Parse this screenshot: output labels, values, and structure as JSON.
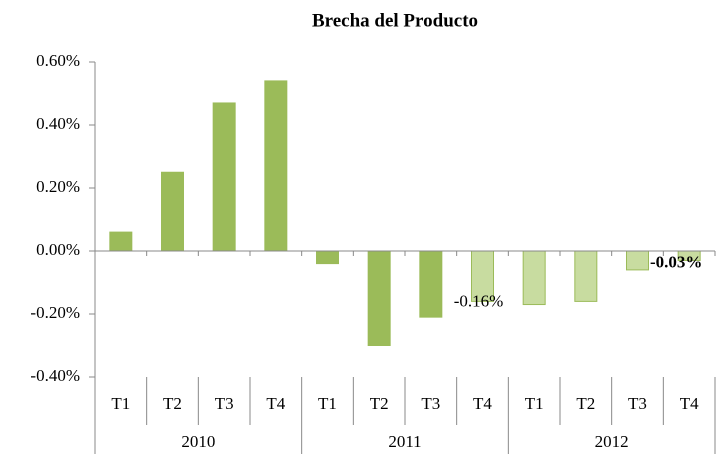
{
  "chart_data": {
    "type": "bar",
    "title": "Brecha del Producto",
    "categories": [
      "T1",
      "T2",
      "T3",
      "T4",
      "T1",
      "T2",
      "T3",
      "T4",
      "T1",
      "T2",
      "T3",
      "T4"
    ],
    "years": [
      "2010",
      "2011",
      "2012"
    ],
    "values": [
      0.06,
      0.25,
      0.47,
      0.54,
      -0.04,
      -0.3,
      -0.21,
      -0.16,
      -0.17,
      -0.16,
      -0.06,
      -0.03
    ],
    "value_labels": [
      null,
      null,
      null,
      null,
      null,
      null,
      null,
      "-0.16%",
      null,
      null,
      null,
      "-0.03%"
    ],
    "colors": [
      "#9bbb59",
      "#9bbb59",
      "#9bbb59",
      "#9bbb59",
      "#9bbb59",
      "#9bbb59",
      "#9bbb59",
      "#c8dca0",
      "#c8dca0",
      "#c8dca0",
      "#c8dca0",
      "#c8dca0"
    ],
    "edge_color": "#9bbb59",
    "ylim": [
      -0.4,
      0.6
    ],
    "yticks": [
      {
        "value": -0.4,
        "label": "-0.40%"
      },
      {
        "value": -0.2,
        "label": "-0.20%"
      },
      {
        "value": 0,
        "label": "0.00%"
      },
      {
        "value": 0.2,
        "label": "0.20%"
      },
      {
        "value": 0.4,
        "label": "0.40%"
      },
      {
        "value": 0.6,
        "label": "0.60%"
      }
    ],
    "grid": false
  }
}
